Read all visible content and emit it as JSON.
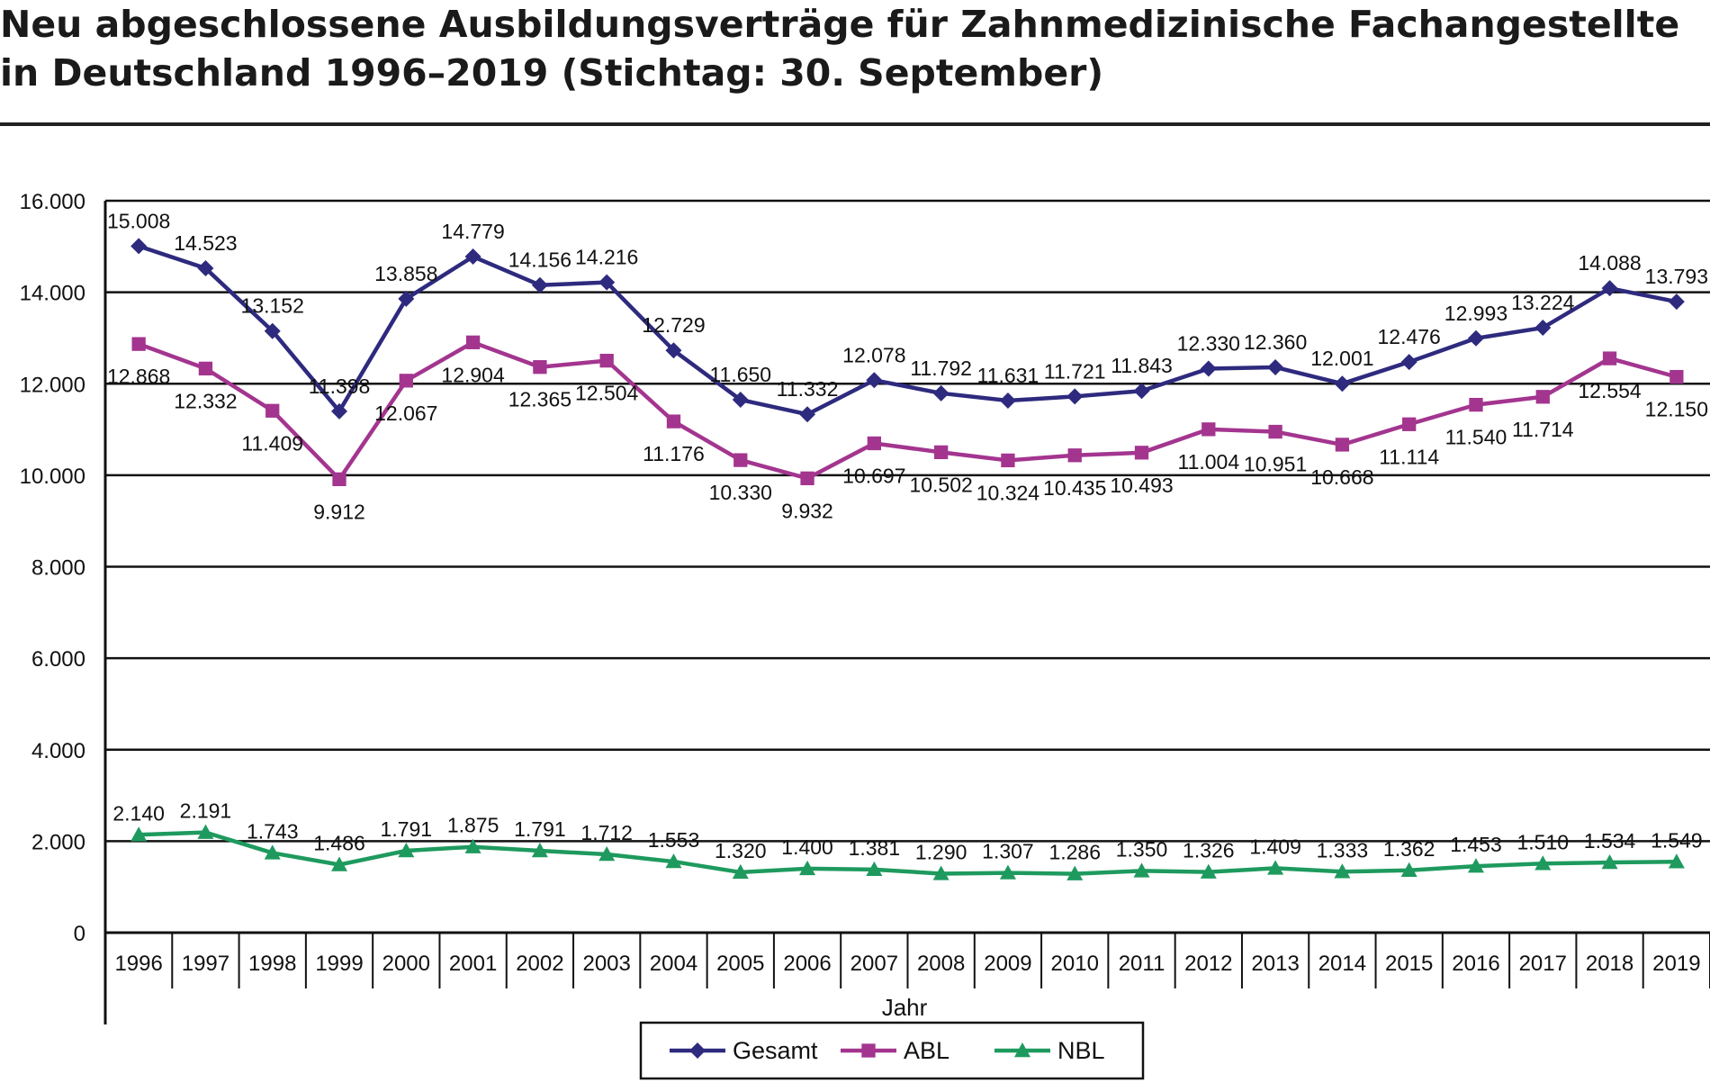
{
  "chart_data": {
    "type": "line",
    "title_lines": [
      "Neu abgeschlossene Ausbildungsverträge für Zahnmedizinische Fachangestellte",
      "in Deutschland 1996–2019 (Stichtag: 30. September)"
    ],
    "xlabel": "Jahr",
    "ylabel": "",
    "ylim": [
      0,
      16000
    ],
    "yticks": [
      "0",
      "2.000",
      "4.000",
      "6.000",
      "8.000",
      "10.000",
      "12.000",
      "14.000",
      "16.000"
    ],
    "grid": true,
    "legend_position": "bottom-center",
    "categories": [
      "1996",
      "1997",
      "1998",
      "1999",
      "2000",
      "2001",
      "2002",
      "2003",
      "2004",
      "2005",
      "2006",
      "2007",
      "2008",
      "2009",
      "2010",
      "2011",
      "2012",
      "2013",
      "2014",
      "2015",
      "2016",
      "2017",
      "2018",
      "2019"
    ],
    "series": [
      {
        "name": "Gesamt",
        "color": "#2e2a7e",
        "marker": "diamond",
        "values": [
          15008,
          14523,
          13152,
          11398,
          13858,
          14779,
          14156,
          14216,
          12729,
          11650,
          11332,
          12078,
          11792,
          11631,
          11721,
          11843,
          12330,
          12360,
          12001,
          12476,
          12993,
          13224,
          14088,
          13793
        ],
        "labels": [
          "15.008",
          "14.523",
          "13.152",
          "11.398",
          "13.858",
          "14.779",
          "14.156",
          "14.216",
          "12.729",
          "11.650",
          "11.332",
          "12.078",
          "11.792",
          "11.631",
          "11.721",
          "11.843",
          "12.330",
          "12.360",
          "12.001",
          "12.476",
          "12.993",
          "13.224",
          "14.088",
          "13.793"
        ]
      },
      {
        "name": "ABL",
        "color": "#a3358f",
        "marker": "square",
        "values": [
          12868,
          12332,
          11409,
          9912,
          12067,
          12904,
          12365,
          12504,
          11176,
          10330,
          9932,
          10697,
          10502,
          10324,
          10435,
          10493,
          11004,
          10951,
          10668,
          11114,
          11540,
          11714,
          12554,
          12150
        ],
        "labels": [
          "12.868",
          "12.332",
          "11.409",
          "9.912",
          "12.067",
          "12.904",
          "12.365",
          "12.504",
          "11.176",
          "10.330",
          "9.932",
          "10.697",
          "10.502",
          "10.324",
          "10.435",
          "10.493",
          "11.004",
          "10.951",
          "10.668",
          "11.114",
          "11.540",
          "11.714",
          "12.554",
          "12.150"
        ]
      },
      {
        "name": "NBL",
        "color": "#1e9a5e",
        "marker": "triangle",
        "values": [
          2140,
          2191,
          1743,
          1486,
          1791,
          1875,
          1791,
          1712,
          1553,
          1320,
          1400,
          1381,
          1290,
          1307,
          1286,
          1350,
          1326,
          1409,
          1333,
          1362,
          1453,
          1510,
          1534,
          1549
        ],
        "labels": [
          "2.140",
          "2.191",
          "1.743",
          "1.486",
          "1.791",
          "1.875",
          "1.791",
          "1.712",
          "1.553",
          "1.320",
          "1.400",
          "1.381",
          "1.290",
          "1.307",
          "1.286",
          "1.350",
          "1.326",
          "1.409",
          "1.333",
          "1.362",
          "1.453",
          "1.510",
          "1.534",
          "1.549"
        ]
      }
    ]
  }
}
